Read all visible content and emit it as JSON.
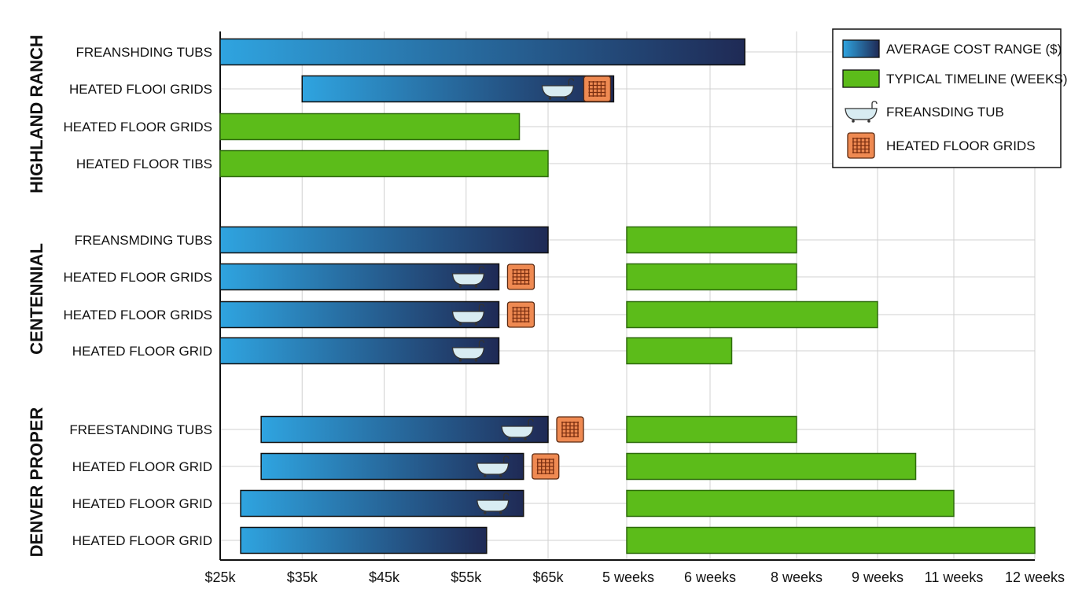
{
  "chart_data": {
    "type": "bar",
    "orientation": "horizontal",
    "grid": true,
    "legend_position": "top-right",
    "colors": {
      "cost_start": "#2fa4e0",
      "cost_end": "#1f2a55",
      "timeline": "#5cbc1a",
      "timeline_border": "#2e6b0c",
      "tub": "#d8ecf2",
      "grid_icon": "#ef8a52"
    },
    "cost_axis": {
      "ticks": [
        "$25k",
        "$35k",
        "$45k",
        "$55k",
        "$65k"
      ],
      "tick_values": [
        25,
        35,
        45,
        55,
        65
      ],
      "unit": "$k"
    },
    "timeline_axis": {
      "ticks": [
        "5 weeks",
        "6 weeks",
        "8 weeks",
        "9 weeks",
        "11 weeks",
        "12 weeks"
      ],
      "tick_values": [
        5,
        6,
        8,
        9,
        11,
        12
      ]
    },
    "legend": [
      {
        "label": "AVERAGE COST RANGE ($)",
        "icon": "cost-swatch"
      },
      {
        "label": "TYPICAL TIMELINE (WEEKS)",
        "icon": "timeline-swatch"
      },
      {
        "label": "FREANSDING TUB",
        "icon": "bathtub-icon"
      },
      {
        "label": "HEATED FLOOR GRIDS",
        "icon": "floor-grid-icon"
      }
    ],
    "groups": [
      {
        "name": "HIGHLAND RANCH",
        "rows": [
          {
            "label": "FREANSHDING TUBS",
            "cost": [
              25,
              89
            ],
            "tub": false,
            "grid": false
          },
          {
            "label": "HEATED FLOOI GRIDS",
            "cost": [
              35,
              73
            ],
            "tub": true,
            "grid": true,
            "grid_inside": true
          },
          {
            "label": "HEATED FLOOR GRIDS",
            "timeline_on_cost_axis": [
              25,
              61.5
            ]
          },
          {
            "label": "HEATED FLOOR TIBS",
            "timeline_on_cost_axis": [
              25,
              65
            ]
          }
        ]
      },
      {
        "name": "CENTENNIAL",
        "rows": [
          {
            "label": "FREANSMDING TUBS",
            "cost": [
              25,
              65
            ],
            "timeline": [
              5,
              8
            ],
            "tub": false,
            "grid": false
          },
          {
            "label": "HEATED FLOOR GRIDS",
            "cost": [
              25,
              59
            ],
            "timeline": [
              5,
              8
            ],
            "tub": true,
            "grid": true
          },
          {
            "label": "HEATED FLOOR GRIDS",
            "cost": [
              25,
              59
            ],
            "timeline": [
              5,
              9
            ],
            "tub": true,
            "grid": true
          },
          {
            "label": "HEATED FLOOR GRID",
            "cost": [
              25,
              59
            ],
            "timeline": [
              5,
              6.5
            ],
            "tub": true,
            "grid": false
          }
        ]
      },
      {
        "name": "DENVER PROPER",
        "rows": [
          {
            "label": "FREESTANDING TUBS",
            "cost": [
              30,
              65
            ],
            "timeline": [
              5,
              8
            ],
            "tub": true,
            "grid": true
          },
          {
            "label": "HEATED FLOOR GRID",
            "cost": [
              30,
              62
            ],
            "timeline": [
              5,
              10
            ],
            "tub": true,
            "grid": true
          },
          {
            "label": "HEATED FLOOR GRID",
            "cost": [
              27.5,
              62
            ],
            "timeline": [
              5,
              11
            ],
            "tub": true,
            "grid": false
          },
          {
            "label": "HEATED FLOOR GRID",
            "cost": [
              27.5,
              57.5
            ],
            "timeline": [
              5,
              12
            ],
            "tub": false,
            "grid": false
          }
        ]
      }
    ]
  }
}
